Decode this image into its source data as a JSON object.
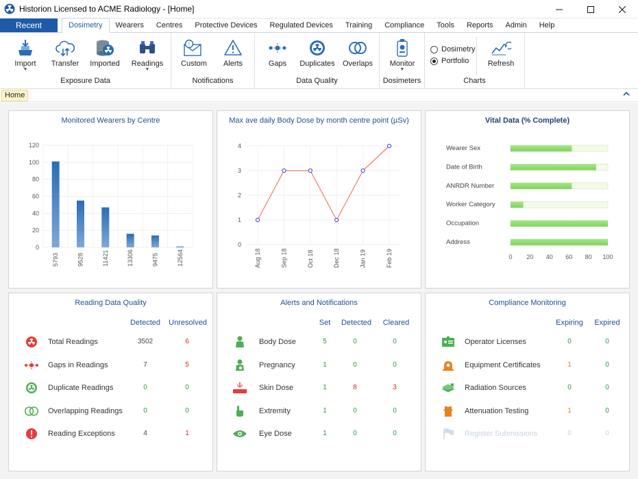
{
  "window": {
    "title": "Historion Licensed to ACME Radiology - [Home]",
    "controls": [
      "minimize",
      "maximize",
      "close"
    ]
  },
  "tabs": {
    "recent": "Recent",
    "items": [
      "Dosimetry",
      "Wearers",
      "Centres",
      "Protective Devices",
      "Regulated Devices",
      "Training",
      "Compliance",
      "Tools",
      "Reports",
      "Admin",
      "Help"
    ],
    "active": "Dosimetry"
  },
  "ribbon": {
    "exposure": {
      "label": "Exposure Data",
      "import": "Import",
      "transfer": "Transfer",
      "imported": "Imported",
      "readings": "Readings"
    },
    "notifications": {
      "label": "Notifications",
      "custom": "Custom",
      "alerts": "Alerts"
    },
    "quality": {
      "label": "Data Quality",
      "gaps": "Gaps",
      "duplicates": "Duplicates",
      "overlaps": "Overlaps"
    },
    "dosimeters": {
      "label": "Dosimeters",
      "monitor": "Monitor"
    },
    "charts": {
      "label": "Charts",
      "option_dosimetry": "Dosimetry",
      "option_portfolio": "Portfolio",
      "selected": "Portfolio",
      "refresh": "Refresh"
    }
  },
  "breadcrumb": {
    "home": "Home"
  },
  "colors": {
    "accent": "#1e5aa8",
    "bar": "#2a6db5",
    "line": "#f07a6a",
    "marker": "#3a44c8",
    "vital_fill": "#7fd45a",
    "vital_track": "#f4fbe8"
  },
  "chart_data": [
    {
      "type": "bar",
      "title": "Monitored Wearers by Centre",
      "categories": [
        "5793",
        "9528",
        "11421",
        "13306",
        "9475",
        "12564"
      ],
      "values": [
        101,
        55,
        47,
        16,
        14,
        1
      ],
      "ylim": [
        0,
        120
      ],
      "yticks": [
        0,
        20,
        40,
        60,
        80,
        100,
        120
      ]
    },
    {
      "type": "line",
      "title": "Max ave daily Body Dose by month centre point (µSv)",
      "categories": [
        "Aug 18",
        "Sep 18",
        "Oct 18",
        "Dec 18",
        "Jan 19",
        "Feb 19"
      ],
      "values": [
        1,
        3,
        3,
        1,
        3,
        4
      ],
      "ylim": [
        0,
        4
      ],
      "yticks": [
        0,
        1,
        2,
        3,
        4
      ]
    },
    {
      "type": "bar",
      "orientation": "horizontal",
      "title": "Vital Data (% Complete)",
      "categories": [
        "Wearer Sex",
        "Date of Birth",
        "ANRDR Number",
        "Worker Category",
        "Occupation",
        "Address"
      ],
      "values": [
        63,
        88,
        63,
        13,
        100,
        100
      ],
      "xlim": [
        0,
        100
      ],
      "xticks": [
        0,
        20,
        40,
        60,
        80,
        100
      ]
    }
  ],
  "quality_panel": {
    "title": "Reading Data Quality",
    "headers": [
      "Detected",
      "Unresolved"
    ],
    "rows": [
      {
        "icon": "radiation-icon",
        "label": "Total Readings",
        "detected": "3502",
        "unresolved": "6"
      },
      {
        "icon": "gaps-icon",
        "label": "Gaps in Readings",
        "detected": "7",
        "unresolved": "5"
      },
      {
        "icon": "duplicate-icon",
        "label": "Duplicate Readings",
        "detected": "0",
        "unresolved": "0"
      },
      {
        "icon": "overlap-icon",
        "label": "Overlapping Readings",
        "detected": "0",
        "unresolved": "0"
      },
      {
        "icon": "exclamation-icon",
        "label": "Reading Exceptions",
        "detected": "4",
        "unresolved": "1"
      }
    ]
  },
  "alerts_panel": {
    "title": "Alerts and Notifications",
    "headers": [
      "Set",
      "Detected",
      "Cleared"
    ],
    "rows": [
      {
        "icon": "person-icon",
        "label": "Body Dose",
        "set": "5",
        "detected": "0",
        "cleared": "0"
      },
      {
        "icon": "pregnancy-icon",
        "label": "Pregnancy",
        "set": "1",
        "detected": "0",
        "cleared": "0"
      },
      {
        "icon": "skin-dose-icon",
        "label": "Skin Dose",
        "set": "1",
        "detected": "8",
        "cleared": "3"
      },
      {
        "icon": "hand-icon",
        "label": "Extremity",
        "set": "1",
        "detected": "0",
        "cleared": "0"
      },
      {
        "icon": "eye-icon",
        "label": "Eye Dose",
        "set": "1",
        "detected": "0",
        "cleared": "0"
      }
    ]
  },
  "compliance_panel": {
    "title": "Compliance Monitoring",
    "headers": [
      "Expiring",
      "Expired"
    ],
    "rows": [
      {
        "icon": "license-icon",
        "label": "Operator Licenses",
        "expiring": "0",
        "expired": "0"
      },
      {
        "icon": "certificate-icon",
        "label": "Equipment Certificates",
        "expiring": "1",
        "expired": "0"
      },
      {
        "icon": "source-icon",
        "label": "Radiation Sources",
        "expiring": "0",
        "expired": "0"
      },
      {
        "icon": "attenuation-icon",
        "label": "Attenuation Testing",
        "expiring": "1",
        "expired": "0"
      },
      {
        "icon": "flag-icon",
        "label": "Register Submissions",
        "expiring": "0",
        "expired": "0"
      }
    ]
  }
}
